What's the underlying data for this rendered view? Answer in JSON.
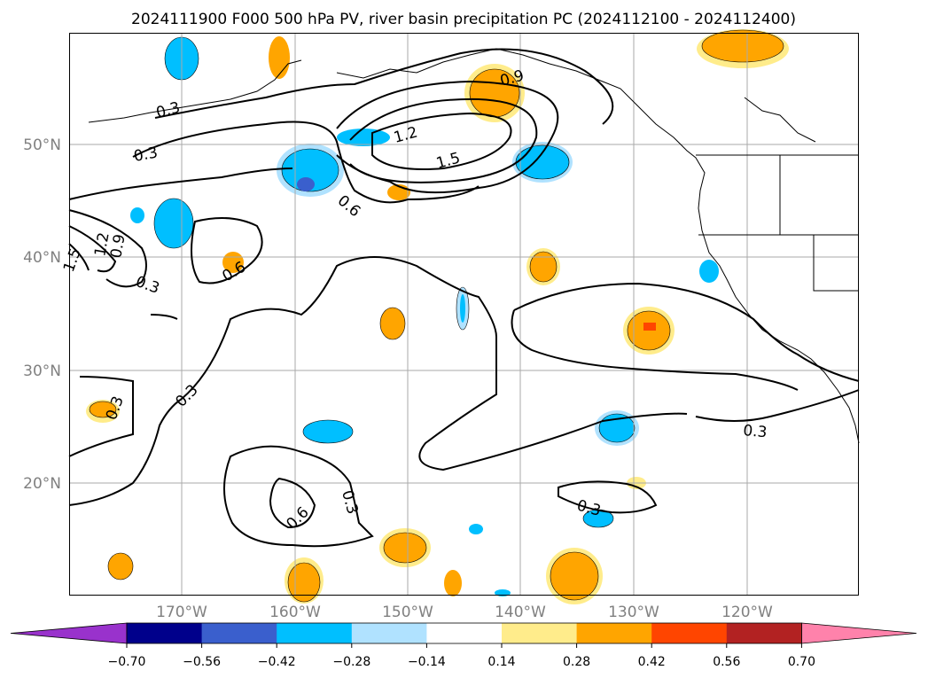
{
  "title": "2024111900 F000 500 hPa PV, river basin precipitation PC (2024112100 - 2024112400)",
  "lat_labels": [
    "50°N",
    "40°N",
    "30°N",
    "20°N"
  ],
  "lon_labels": [
    "170°W",
    "160°W",
    "150°W",
    "140°W",
    "130°W",
    "120°W"
  ],
  "colorbar": {
    "ticks": [
      "−0.70",
      "−0.56",
      "−0.42",
      "−0.28",
      "−0.14",
      "0.14",
      "0.28",
      "0.42",
      "0.56",
      "0.70"
    ],
    "colors": [
      "#9932cc",
      "#00008b",
      "#3a5fcd",
      "#00bfff",
      "#b0e2ff",
      "#ffffff",
      "#ffec8b",
      "#ffa500",
      "#ff4500",
      "#b22222",
      "#ff82ab"
    ]
  },
  "contour_labels": [
    "0.3",
    "0.3",
    "0.3",
    "0.3",
    "0.3",
    "0.3",
    "0.3",
    "0.3",
    "0.6",
    "0.6",
    "0.6",
    "0.9",
    "1.2",
    "1.5",
    "1.5",
    "1.2",
    "0.9"
  ],
  "chart_data": {
    "type": "map",
    "title": "2024111900 F000 500 hPa PV, river basin precipitation PC (2024112100 - 2024112400)",
    "lon_range": [
      -180,
      -110
    ],
    "lat_range": [
      10,
      60
    ],
    "grid": true,
    "contour_levels": [
      0.3,
      0.6,
      0.9,
      1.2,
      1.5
    ],
    "shading_levels": [
      -0.7,
      -0.56,
      -0.42,
      -0.28,
      -0.14,
      0.14,
      0.28,
      0.42,
      0.56,
      0.7
    ]
  }
}
